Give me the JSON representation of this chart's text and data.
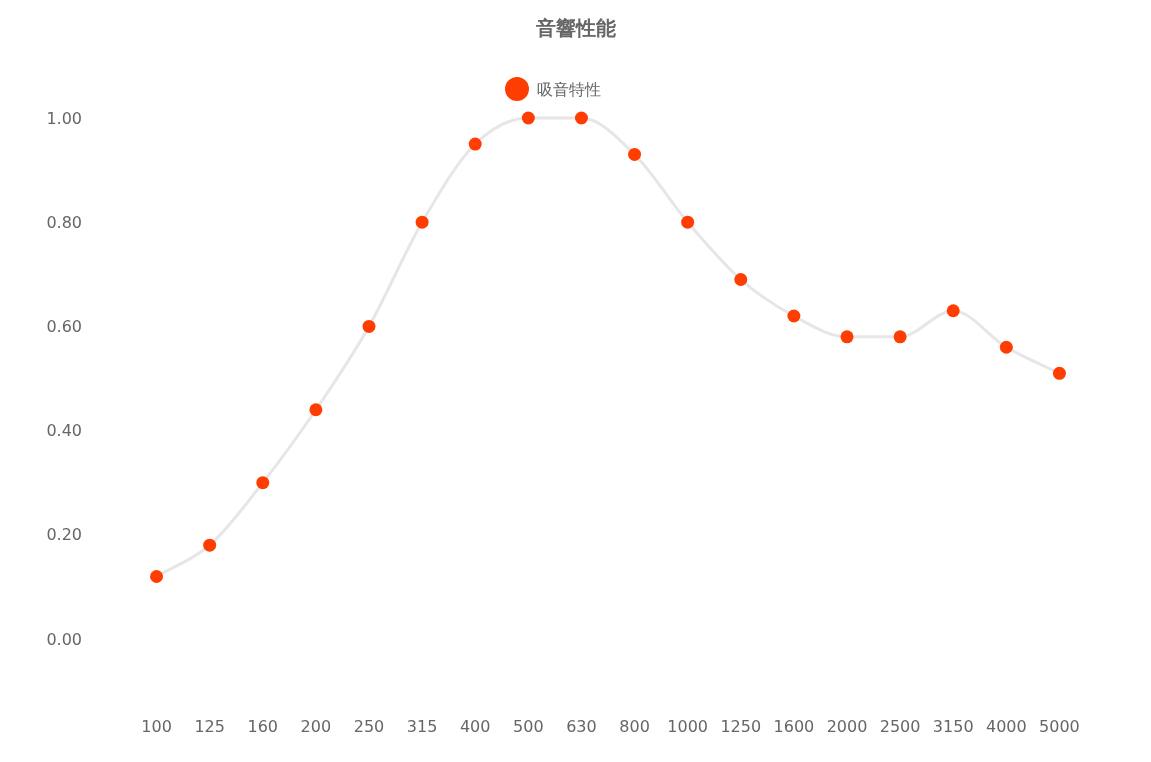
{
  "chart_data": {
    "type": "line",
    "title": "音響性能",
    "categories": [
      "100",
      "125",
      "160",
      "200",
      "250",
      "315",
      "400",
      "500",
      "630",
      "800",
      "1000",
      "1250",
      "1600",
      "2000",
      "2500",
      "3150",
      "4000",
      "5000"
    ],
    "series": [
      {
        "name": "吸音特性",
        "color": "#ff3d00",
        "values": [
          0.12,
          0.18,
          0.3,
          0.44,
          0.6,
          0.8,
          0.95,
          1.0,
          1.0,
          0.93,
          0.8,
          0.69,
          0.62,
          0.58,
          0.58,
          0.63,
          0.56,
          0.51
        ]
      }
    ],
    "ylim": [
      0,
      1
    ],
    "yticks": [
      {
        "value": 0,
        "label": "0.00"
      },
      {
        "value": 0.2,
        "label": "0.20"
      },
      {
        "value": 0.4,
        "label": "0.40"
      },
      {
        "value": 0.6,
        "label": "0.60"
      },
      {
        "value": 0.8,
        "label": "0.80"
      },
      {
        "value": 1,
        "label": "1.00"
      }
    ],
    "grid": false,
    "legend": "top",
    "marker": "circle",
    "line_style": "solid"
  }
}
